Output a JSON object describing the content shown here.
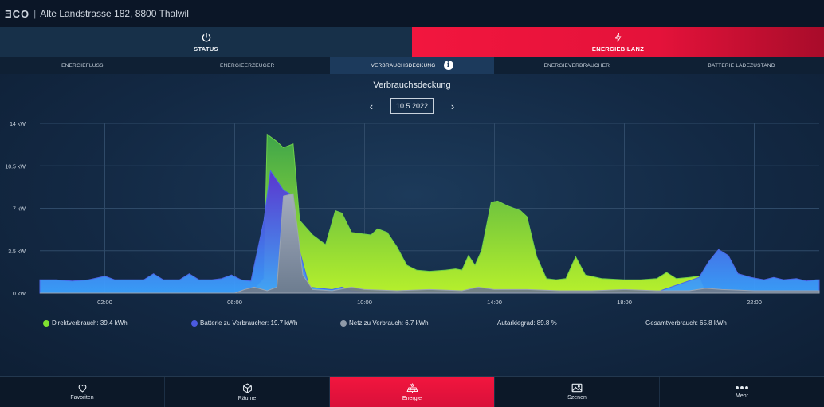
{
  "topbar": {
    "logo": "ƎCO",
    "separator": "|",
    "address": "Alte Landstrasse 182, 8800 Thalwil"
  },
  "main_tabs": [
    {
      "label": "STATUS",
      "icon": "power-icon"
    },
    {
      "label": "ENERGIEBILANZ",
      "icon": "lightning-icon"
    }
  ],
  "sub_tabs": [
    "ENERGIEFLUSS",
    "ENERGIEERZEUGER",
    "VERBRAUCHSDECKUNG",
    "ENERGIEVERBRAUCHER",
    "BATTERIE LADEZUSTAND"
  ],
  "active_sub_tab": "VERBRAUCHSDECKUNG",
  "page": {
    "title": "Verbrauchsdeckung",
    "date": "10.5.2022",
    "prev": "‹",
    "next": "›",
    "info": "i"
  },
  "legend": {
    "direkt": "Direktverbrauch: 39.4 kWh",
    "batterie": "Batterie zu Verbraucher: 19.7 kWh",
    "netz": "Netz zu Verbrauch: 6.7 kWh",
    "autarkie": "Autarkiegrad: 89.8 %",
    "gesamt": "Gesamtverbrauch: 65.8 kWh"
  },
  "colors": {
    "direkt": "#7fe030",
    "batterie": "#4b5ae0",
    "netz": "#8f9aa8",
    "accent": "#f2163e"
  },
  "bottom_nav": [
    {
      "label": "Favoriten",
      "icon": "heart-icon"
    },
    {
      "label": "Räume",
      "icon": "cube-icon"
    },
    {
      "label": "Energie",
      "icon": "solar-panel-icon"
    },
    {
      "label": "Szenen",
      "icon": "image-icon"
    },
    {
      "label": "Mehr",
      "icon": "dots-icon"
    }
  ],
  "active_nav": "Energie",
  "chart_data": {
    "type": "area",
    "title": "Verbrauchsdeckung",
    "xlabel": "",
    "ylabel": "",
    "unit": "kW",
    "xlim": [
      0,
      24
    ],
    "ylim": [
      0,
      14
    ],
    "y_ticks": [
      "0 kW",
      "3.5 kW",
      "7 kW",
      "10.5 kW",
      "14 kW"
    ],
    "y_tick_values": [
      0,
      3.5,
      7,
      10.5,
      14
    ],
    "x_ticks": [
      "02:00",
      "06:00",
      "10:00",
      "14:00",
      "18:00",
      "22:00"
    ],
    "x_tick_values": [
      2,
      6,
      10,
      14,
      18,
      22
    ],
    "grid": true,
    "series": [
      {
        "name": "Direktverbrauch",
        "color": "#7fe030",
        "points": [
          [
            0,
            0
          ],
          [
            6,
            0
          ],
          [
            6.5,
            0
          ],
          [
            6.9,
            1.2
          ],
          [
            7.0,
            13.1
          ],
          [
            7.3,
            12.5
          ],
          [
            7.5,
            12
          ],
          [
            7.8,
            12.3
          ],
          [
            8.0,
            6
          ],
          [
            8.4,
            4.8
          ],
          [
            8.8,
            4
          ],
          [
            9.1,
            6.8
          ],
          [
            9.3,
            6.6
          ],
          [
            9.6,
            5
          ],
          [
            9.9,
            4.9
          ],
          [
            10.2,
            4.8
          ],
          [
            10.4,
            5.3
          ],
          [
            10.7,
            5
          ],
          [
            11.0,
            3.8
          ],
          [
            11.3,
            2.3
          ],
          [
            11.6,
            1.9
          ],
          [
            12.0,
            1.8
          ],
          [
            12.5,
            1.9
          ],
          [
            12.8,
            2
          ],
          [
            13.0,
            1.9
          ],
          [
            13.2,
            3.1
          ],
          [
            13.4,
            2.3
          ],
          [
            13.6,
            3.5
          ],
          [
            13.9,
            7.5
          ],
          [
            14.1,
            7.6
          ],
          [
            14.4,
            7.2
          ],
          [
            14.8,
            6.8
          ],
          [
            15.0,
            6.3
          ],
          [
            15.3,
            3
          ],
          [
            15.6,
            1.2
          ],
          [
            15.9,
            1.1
          ],
          [
            16.2,
            1.2
          ],
          [
            16.5,
            3
          ],
          [
            16.8,
            1.5
          ],
          [
            17.3,
            1.2
          ],
          [
            18.0,
            1.1
          ],
          [
            18.5,
            1.1
          ],
          [
            19.0,
            1.2
          ],
          [
            19.3,
            1.7
          ],
          [
            19.6,
            1.2
          ],
          [
            20.0,
            1.3
          ],
          [
            20.3,
            1.4
          ],
          [
            20.5,
            0
          ],
          [
            24,
            0
          ]
        ]
      },
      {
        "name": "Batterie zu Verbraucher",
        "color": "#4b5ae0",
        "points": [
          [
            0,
            1.1
          ],
          [
            0.5,
            1.1
          ],
          [
            1.0,
            1.0
          ],
          [
            1.5,
            1.1
          ],
          [
            2.0,
            1.4
          ],
          [
            2.3,
            1.1
          ],
          [
            2.8,
            1.1
          ],
          [
            3.2,
            1.1
          ],
          [
            3.5,
            1.6
          ],
          [
            3.8,
            1.1
          ],
          [
            4.3,
            1.1
          ],
          [
            4.6,
            1.6
          ],
          [
            4.9,
            1.1
          ],
          [
            5.3,
            1.1
          ],
          [
            5.6,
            1.2
          ],
          [
            5.9,
            1.5
          ],
          [
            6.2,
            1.1
          ],
          [
            6.5,
            1.0
          ],
          [
            6.9,
            6
          ],
          [
            7.1,
            10.1
          ],
          [
            7.5,
            8.5
          ],
          [
            7.7,
            8.2
          ],
          [
            8.0,
            3.5
          ],
          [
            8.3,
            0.5
          ],
          [
            8.6,
            0.4
          ],
          [
            9.0,
            0.3
          ],
          [
            9.3,
            0.5
          ],
          [
            9.6,
            0.2
          ],
          [
            10,
            0.1
          ],
          [
            19,
            0.1
          ],
          [
            20.3,
            1.3
          ],
          [
            20.6,
            2.6
          ],
          [
            20.9,
            3.6
          ],
          [
            21.2,
            3.1
          ],
          [
            21.5,
            1.6
          ],
          [
            21.9,
            1.3
          ],
          [
            22.3,
            1.1
          ],
          [
            22.6,
            1.3
          ],
          [
            22.9,
            1.1
          ],
          [
            23.3,
            1.2
          ],
          [
            23.6,
            1.0
          ],
          [
            23.9,
            1.1
          ],
          [
            24,
            1.1
          ]
        ]
      },
      {
        "name": "Netz zu Verbrauch",
        "color": "#8f9aa8",
        "points": [
          [
            0,
            0
          ],
          [
            6.0,
            0
          ],
          [
            6.3,
            0.3
          ],
          [
            6.6,
            0.5
          ],
          [
            7.0,
            0.2
          ],
          [
            7.3,
            0.5
          ],
          [
            7.5,
            8
          ],
          [
            7.8,
            8.2
          ],
          [
            8.1,
            1.5
          ],
          [
            8.4,
            0.3
          ],
          [
            9.0,
            0.2
          ],
          [
            9.6,
            0.5
          ],
          [
            10.0,
            0.3
          ],
          [
            11.0,
            0.2
          ],
          [
            12.0,
            0.3
          ],
          [
            13.0,
            0.2
          ],
          [
            13.5,
            0.5
          ],
          [
            14.0,
            0.3
          ],
          [
            15.0,
            0.3
          ],
          [
            16.0,
            0.2
          ],
          [
            17.0,
            0.2
          ],
          [
            18.0,
            0.3
          ],
          [
            19.0,
            0.2
          ],
          [
            20.0,
            0.2
          ],
          [
            20.5,
            0.4
          ],
          [
            21.0,
            0.3
          ],
          [
            22.0,
            0.2
          ],
          [
            23.0,
            0.2
          ],
          [
            24,
            0.2
          ]
        ]
      }
    ]
  }
}
